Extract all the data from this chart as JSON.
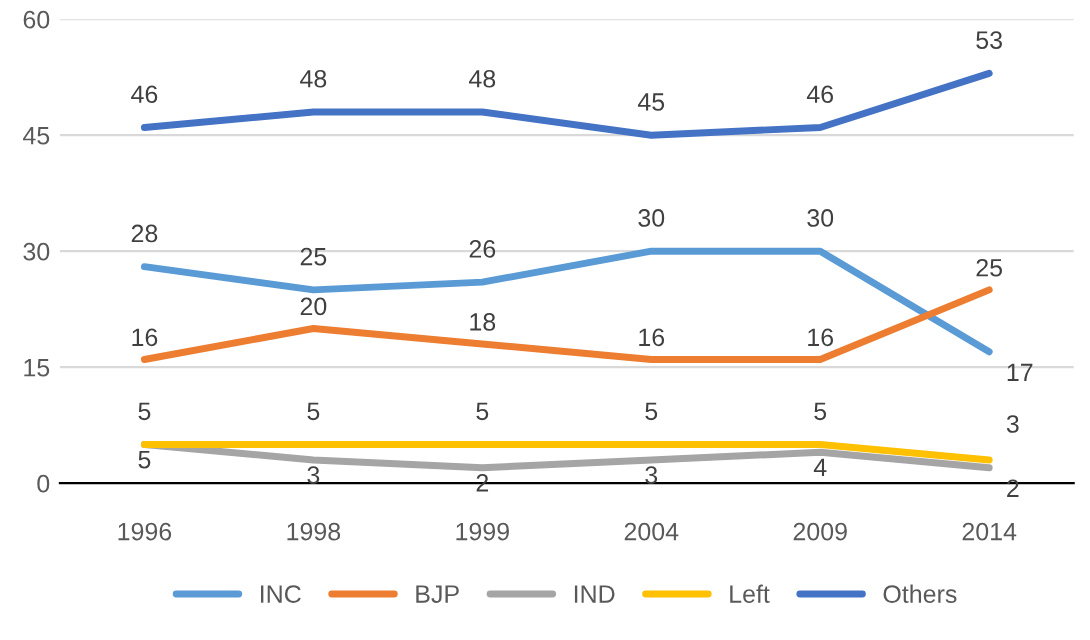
{
  "chart_data": {
    "type": "line",
    "categories": [
      "1996",
      "1998",
      "1999",
      "2004",
      "2009",
      "2014"
    ],
    "series": [
      {
        "name": "INC",
        "color": "#5b9bd5",
        "values": [
          28,
          25,
          26,
          30,
          30,
          17
        ]
      },
      {
        "name": "BJP",
        "color": "#ed7d31",
        "values": [
          16,
          20,
          18,
          16,
          16,
          25
        ]
      },
      {
        "name": "IND",
        "color": "#a5a5a5",
        "values": [
          5,
          3,
          2,
          3,
          4,
          2
        ]
      },
      {
        "name": "Left",
        "color": "#ffc000",
        "values": [
          5,
          5,
          5,
          5,
          5,
          3
        ]
      },
      {
        "name": "Others",
        "color": "#4472c4",
        "values": [
          46,
          48,
          48,
          45,
          46,
          53
        ]
      }
    ],
    "ylim": [
      0,
      60
    ],
    "yticks": [
      0,
      15,
      30,
      45,
      60
    ],
    "grid": "y",
    "legend": "bottom",
    "data_labels": true,
    "marker": "none",
    "line_style": "solid"
  }
}
